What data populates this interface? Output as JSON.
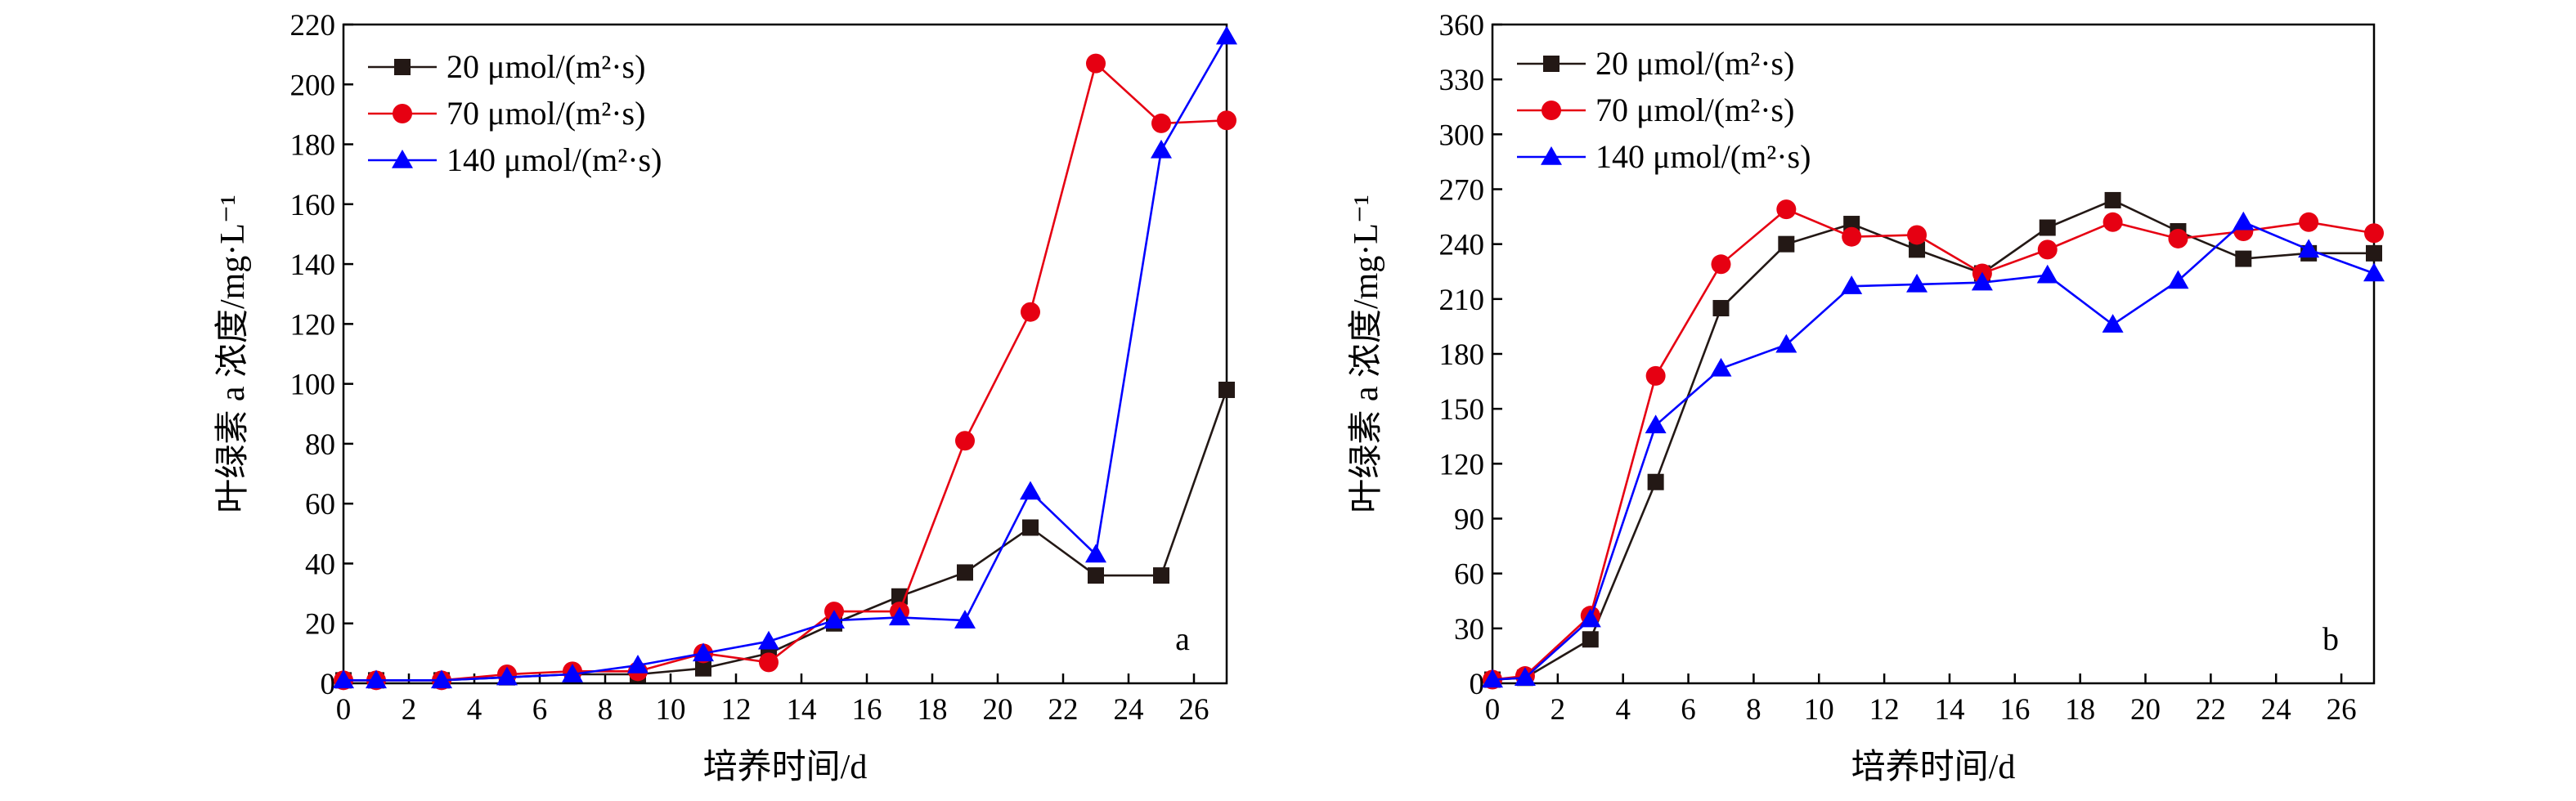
{
  "chart_data": [
    {
      "type": "line",
      "panel_label": "a",
      "xlabel": "培养时间/d",
      "ylabel": "叶绿素 a 浓度/mg·L⁻¹",
      "xlim": [
        0,
        27
      ],
      "ylim": [
        0,
        220
      ],
      "xticks": [
        0,
        2,
        4,
        6,
        8,
        10,
        12,
        14,
        16,
        18,
        20,
        22,
        24,
        26
      ],
      "yticks": [
        0,
        20,
        40,
        60,
        80,
        100,
        120,
        140,
        160,
        180,
        200,
        220
      ],
      "legend_position": "top-left",
      "x": [
        0,
        1,
        3,
        5,
        7,
        9,
        11,
        13,
        15,
        17,
        19,
        21,
        23,
        25,
        27
      ],
      "series": [
        {
          "name": "20 μmol/(m²·s)",
          "color": "#231815",
          "marker": "square",
          "values": [
            1,
            1,
            1,
            2,
            3,
            3,
            5,
            10,
            20,
            29,
            37,
            52,
            36,
            36,
            98
          ]
        },
        {
          "name": "70 μmol/(m²·s)",
          "color": "#e60012",
          "marker": "circle",
          "values": [
            1,
            1,
            1,
            3,
            4,
            4,
            10,
            7,
            24,
            24,
            81,
            124,
            207,
            187,
            188
          ]
        },
        {
          "name": "140 μmol/(m²·s)",
          "color": "#0000ff",
          "marker": "triangle",
          "values": [
            1,
            1,
            1,
            2,
            3,
            6,
            10,
            14,
            21,
            22,
            21,
            64,
            43,
            178,
            216
          ]
        }
      ]
    },
    {
      "type": "line",
      "panel_label": "b",
      "xlabel": "培养时间/d",
      "ylabel": "叶绿素 a 浓度/mg·L⁻¹",
      "xlim": [
        0,
        27
      ],
      "ylim": [
        0,
        360
      ],
      "xticks": [
        0,
        2,
        4,
        6,
        8,
        10,
        12,
        14,
        16,
        18,
        20,
        22,
        24,
        26
      ],
      "yticks": [
        0,
        30,
        60,
        90,
        120,
        150,
        180,
        210,
        240,
        270,
        300,
        330,
        360
      ],
      "legend_position": "top-left",
      "x": [
        0,
        1,
        3,
        5,
        7,
        9,
        11,
        13,
        15,
        17,
        19,
        21,
        23,
        25,
        27
      ],
      "series": [
        {
          "name": "20 μmol/(m²·s)",
          "color": "#231815",
          "marker": "square",
          "values": [
            2,
            3,
            24,
            110,
            205,
            240,
            251,
            237,
            224,
            249,
            264,
            247,
            232,
            235,
            235
          ]
        },
        {
          "name": "70 μmol/(m²·s)",
          "color": "#e60012",
          "marker": "circle",
          "values": [
            2,
            4,
            37,
            168,
            229,
            259,
            244,
            245,
            224,
            237,
            252,
            243,
            247,
            252,
            246
          ]
        },
        {
          "name": "140 μmol/(m²·s)",
          "color": "#0000ff",
          "marker": "triangle",
          "values": [
            2,
            3,
            35,
            141,
            172,
            185,
            217,
            218,
            219,
            223,
            196,
            220,
            252,
            237,
            224
          ]
        }
      ]
    }
  ]
}
